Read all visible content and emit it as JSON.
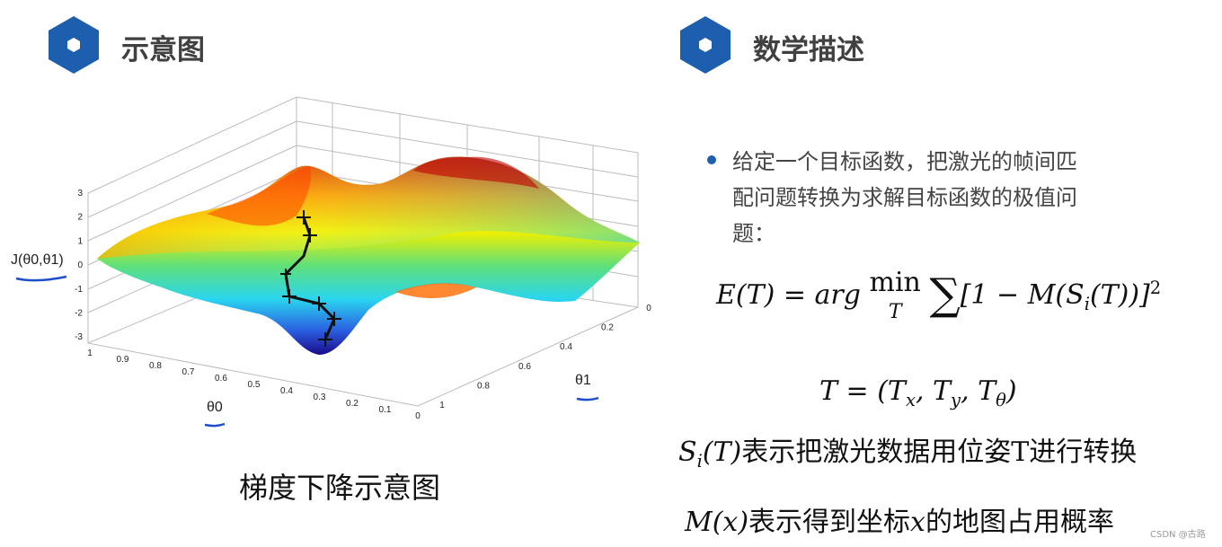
{
  "left": {
    "heading": "示意图",
    "figure": {
      "z_label": "J(θ0,θ1)",
      "x_label": "θ0",
      "y_label": "θ1",
      "z_ticks": [
        3,
        2,
        1,
        0,
        -1,
        -2,
        -3
      ],
      "x_ticks": [
        1,
        0.9,
        0.8,
        0.7,
        0.6,
        0.5,
        0.4,
        0.3,
        0.2,
        0.1,
        0
      ],
      "y_ticks": [
        0,
        0.2,
        0.4,
        0.6,
        0.8,
        1
      ]
    },
    "caption": "梯度下降示意图"
  },
  "right": {
    "heading": "数学描述",
    "bullet": "给定一个目标函数，把激光的帧间匹配问题转换为求解目标函数的极值问题：",
    "formula1": {
      "lhs": "E(T) = arg",
      "min": "min",
      "min_sub": "T",
      "sum": "∑",
      "body": "[1 − M(S",
      "body_sub": "i",
      "body_end": "(T))]",
      "sup": "2"
    },
    "formula2": {
      "lhs": "T = (T",
      "s1": "x",
      "m1": ", T",
      "s2": "y",
      "m2": ", T",
      "s3": "θ",
      "end": ")"
    },
    "line3": {
      "sym": "S",
      "sub": "i",
      "sym_end": "(T)",
      "text": "表示把激光数据用位姿T进行转换"
    },
    "line4": {
      "sym": "M(x)",
      "text": "表示得到坐标",
      "var": "x",
      "text2": "的地图占用概率"
    }
  },
  "watermark": "CSDN @古路"
}
